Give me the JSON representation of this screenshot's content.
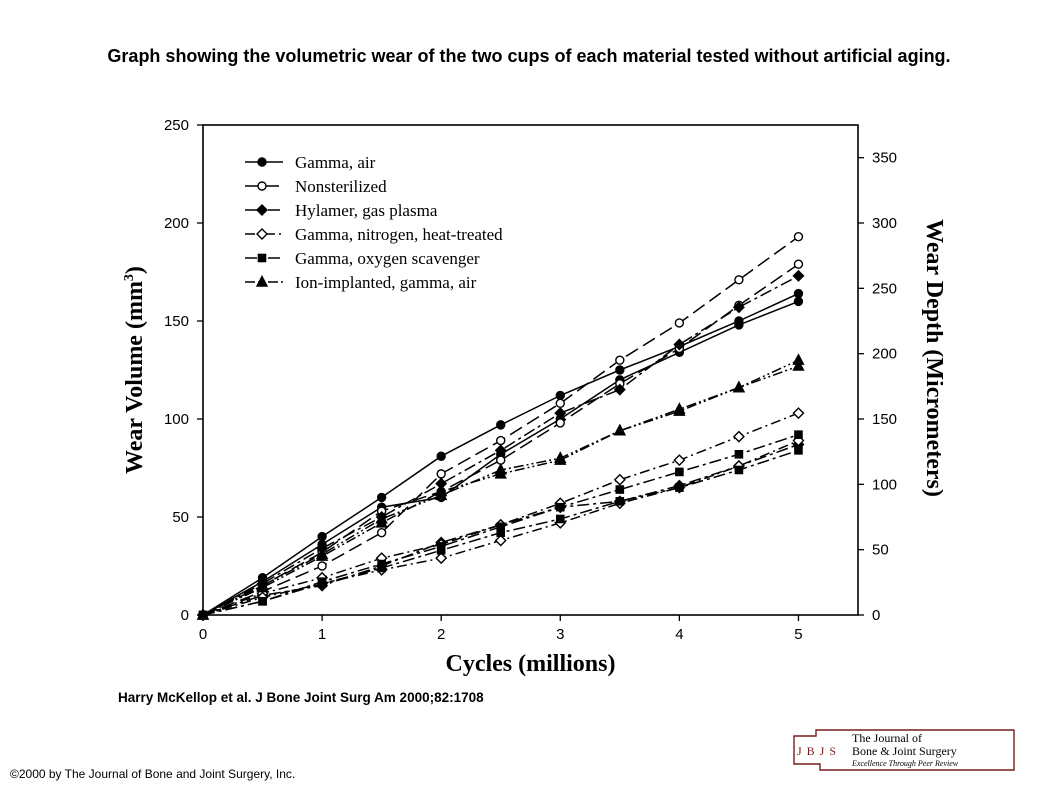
{
  "slide": {
    "title": "Graph showing the volumetric wear of the two cups of each material tested without artificial aging.",
    "citation": "Harry McKellop et al. J Bone Joint Surg Am 2000;82:1708",
    "copyright": "©2000 by The Journal of Bone and Joint Surgery, Inc."
  },
  "logo": {
    "abbr": "J B J S",
    "line1": "The Journal of",
    "line2": "Bone & Joint Surgery",
    "tagline": "Excellence Through Peer Review",
    "color": "#7a1c1c"
  },
  "chart_data": {
    "type": "line",
    "xlabel": "Cycles (millions)",
    "ylabel": "Wear Volume (mm",
    "ylabel_sup": "3",
    "ylabel_close": ")",
    "y2label": "Wear Depth (Micrometers)",
    "xlim": [
      0,
      5.5
    ],
    "ylim": [
      0,
      250
    ],
    "y2lim": [
      0,
      375
    ],
    "xticks": [
      0,
      1,
      2,
      3,
      4,
      5
    ],
    "yticks": [
      0,
      50,
      100,
      150,
      200,
      250
    ],
    "y2ticks": [
      0,
      50,
      100,
      150,
      200,
      250,
      300,
      350
    ],
    "legend_position": "top-left",
    "grid": false,
    "series": [
      {
        "name": "Gamma, air",
        "marker": "circle-filled",
        "dash": "solid",
        "lines": [
          {
            "x": [
              0,
              0.5,
              1,
              1.5,
              2,
              2.5,
              3,
              3.5,
              4,
              4.5,
              5
            ],
            "y": [
              0,
              19,
              40,
              60,
              81,
              97,
              112,
              125,
              137,
              150,
              164
            ]
          },
          {
            "x": [
              0,
              0.5,
              1,
              1.5,
              2,
              2.5,
              3,
              3.5,
              4,
              4.5,
              5
            ],
            "y": [
              0,
              17,
              36,
              55,
              60,
              82,
              100,
              120,
              134,
              148,
              160
            ]
          }
        ]
      },
      {
        "name": "Nonsterilized",
        "marker": "circle-open",
        "dash": "long-dash",
        "lines": [
          {
            "x": [
              0,
              0.5,
              1,
              1.5,
              2,
              2.5,
              3,
              3.5,
              4,
              4.5,
              5
            ],
            "y": [
              0,
              12,
              25,
              42,
              72,
              89,
              108,
              130,
              149,
              171,
              193
            ]
          },
          {
            "x": [
              0,
              0.5,
              1,
              1.5,
              2,
              2.5,
              3,
              3.5,
              4,
              4.5,
              5
            ],
            "y": [
              0,
              15,
              32,
              53,
              63,
              79,
              98,
              118,
              136,
              158,
              179
            ]
          }
        ]
      },
      {
        "name": "Hylamer, gas plasma",
        "marker": "diamond-filled",
        "dash": "long-short",
        "lines": [
          {
            "x": [
              0,
              0.5,
              1,
              1.5,
              2,
              2.5,
              3,
              3.5,
              4,
              4.5,
              5
            ],
            "y": [
              0,
              16,
              34,
              50,
              67,
              84,
              103,
              115,
              138,
              157,
              173
            ]
          },
          {
            "x": [
              0,
              0.5,
              1,
              1.5,
              2,
              2.5,
              3,
              3.5,
              4,
              4.5,
              5
            ],
            "y": [
              0,
              10,
              15,
              25,
              37,
              46,
              55,
              58,
              66,
              76,
              87
            ]
          }
        ]
      },
      {
        "name": "Gamma, nitrogen, heat-treated",
        "marker": "diamond-open",
        "dash": "dash-dot",
        "lines": [
          {
            "x": [
              0,
              0.5,
              1,
              1.5,
              2,
              2.5,
              3,
              3.5,
              4,
              4.5,
              5
            ],
            "y": [
              0,
              11,
              19,
              29,
              36,
              46,
              57,
              69,
              79,
              91,
              103
            ]
          },
          {
            "x": [
              0,
              0.5,
              1,
              1.5,
              2,
              2.5,
              3,
              3.5,
              4,
              4.5,
              5
            ],
            "y": [
              0,
              9,
              16,
              23,
              29,
              38,
              47,
              57,
              65,
              76,
              89
            ]
          }
        ]
      },
      {
        "name": "Gamma, oxygen scavenger",
        "marker": "square-filled",
        "dash": "long-short",
        "lines": [
          {
            "x": [
              0,
              0.5,
              1,
              1.5,
              2,
              2.5,
              3,
              3.5,
              4,
              4.5,
              5
            ],
            "y": [
              0,
              7,
              17,
              26,
              35,
              45,
              55,
              64,
              73,
              82,
              92
            ]
          },
          {
            "x": [
              0,
              0.5,
              1,
              1.5,
              2,
              2.5,
              3,
              3.5,
              4,
              4.5,
              5
            ],
            "y": [
              0,
              7,
              16,
              24,
              33,
              42,
              49,
              58,
              65,
              74,
              84
            ]
          }
        ]
      },
      {
        "name": "Ion-implanted, gamma, air",
        "marker": "triangle-filled",
        "dash": "dash-dot-dot",
        "lines": [
          {
            "x": [
              0,
              0.5,
              1,
              1.5,
              2,
              2.5,
              3,
              3.5,
              4,
              4.5,
              5
            ],
            "y": [
              0,
              15,
              31,
              49,
              61,
              74,
              80,
              94,
              105,
              116,
              130
            ]
          },
          {
            "x": [
              0,
              0.5,
              1,
              1.5,
              2,
              2.5,
              3,
              3.5,
              4,
              4.5,
              5
            ],
            "y": [
              0,
              14,
              30,
              47,
              63,
              72,
              79,
              94,
              104,
              116,
              127
            ]
          }
        ]
      }
    ]
  }
}
